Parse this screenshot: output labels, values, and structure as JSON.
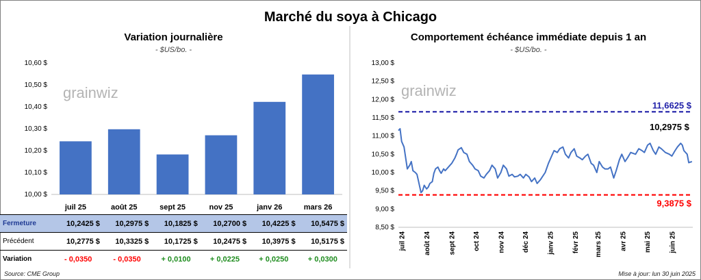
{
  "page": {
    "title": "Marché du soya à Chicago",
    "source": "Source: CME Group",
    "updated": "Mise à jour: lun 30 juin 2025",
    "watermark": "grainwiz",
    "colors": {
      "bar": "#4472c4",
      "line": "#4472c4",
      "high_line": "#1f1fa8",
      "low_line": "#ff0000",
      "negative": "#ff0000",
      "positive": "#1e8c1e",
      "table_highlight": "#b4c6e7"
    }
  },
  "chart_data": [
    {
      "type": "bar",
      "title": "Variation journalière",
      "subtitle": "- $US/bo. -",
      "categories": [
        "juil 25",
        "août 25",
        "sept 25",
        "nov 25",
        "janv 26",
        "mars 26"
      ],
      "values": [
        10.2425,
        10.2975,
        10.1825,
        10.27,
        10.4225,
        10.5475
      ],
      "ylim": [
        10.0,
        10.6
      ],
      "yticks": [
        "10,00 $",
        "10,10 $",
        "10,20 $",
        "10,30 $",
        "10,40 $",
        "10,50 $",
        "10,60 $"
      ],
      "grid": false
    },
    {
      "type": "line",
      "title": "Comportement échéance immédiate depuis 1 an",
      "subtitle": "- $US/bo. -",
      "ylim": [
        8.5,
        13.0
      ],
      "yticks": [
        "8,50 $",
        "9,00 $",
        "9,50 $",
        "10,00 $",
        "10,50 $",
        "11,00 $",
        "11,50 $",
        "12,00 $",
        "12,50 $",
        "13,00 $"
      ],
      "xticks": [
        "juil 24",
        "août 24",
        "sept 24",
        "oct 24",
        "nov 24",
        "déc 24",
        "janv 25",
        "févr 25",
        "mars 25",
        "avr 25",
        "mai 25",
        "juin 25"
      ],
      "x": [
        "2024-07-01",
        "2024-07-03",
        "2024-07-05",
        "2024-07-08",
        "2024-07-10",
        "2024-07-12",
        "2024-07-15",
        "2024-07-17",
        "2024-07-19",
        "2024-07-22",
        "2024-07-24",
        "2024-07-26",
        "2024-07-29",
        "2024-07-31",
        "2024-08-02",
        "2024-08-05",
        "2024-08-07",
        "2024-08-09",
        "2024-08-12",
        "2024-08-14",
        "2024-08-16",
        "2024-08-19",
        "2024-08-21",
        "2024-08-23",
        "2024-08-26",
        "2024-08-28",
        "2024-08-30",
        "2024-09-03",
        "2024-09-05",
        "2024-09-09",
        "2024-09-11",
        "2024-09-13",
        "2024-09-17",
        "2024-09-20",
        "2024-09-24",
        "2024-09-27",
        "2024-10-01",
        "2024-10-04",
        "2024-10-08",
        "2024-10-11",
        "2024-10-15",
        "2024-10-18",
        "2024-10-22",
        "2024-10-25",
        "2024-10-29",
        "2024-11-01",
        "2024-11-05",
        "2024-11-08",
        "2024-11-12",
        "2024-11-15",
        "2024-11-19",
        "2024-11-22",
        "2024-11-26",
        "2024-11-29",
        "2024-12-03",
        "2024-12-06",
        "2024-12-10",
        "2024-12-13",
        "2024-12-17",
        "2024-12-20",
        "2024-12-24",
        "2024-12-30",
        "2025-01-03",
        "2025-01-07",
        "2025-01-10",
        "2025-01-14",
        "2025-01-17",
        "2025-01-21",
        "2025-01-24",
        "2025-01-28",
        "2025-01-31",
        "2025-02-04",
        "2025-02-07",
        "2025-02-11",
        "2025-02-14",
        "2025-02-18",
        "2025-02-21",
        "2025-02-25",
        "2025-02-28",
        "2025-03-04",
        "2025-03-07",
        "2025-03-11",
        "2025-03-14",
        "2025-03-18",
        "2025-03-21",
        "2025-03-25",
        "2025-03-28",
        "2025-04-01",
        "2025-04-04",
        "2025-04-08",
        "2025-04-11",
        "2025-04-15",
        "2025-04-21",
        "2025-04-25",
        "2025-04-29",
        "2025-05-02",
        "2025-05-06",
        "2025-05-09",
        "2025-05-13",
        "2025-05-16",
        "2025-05-20",
        "2025-05-23",
        "2025-05-28",
        "2025-06-02",
        "2025-06-05",
        "2025-06-09",
        "2025-06-12",
        "2025-06-16",
        "2025-06-18",
        "2025-06-20",
        "2025-06-24",
        "2025-06-26",
        "2025-06-30"
      ],
      "y": [
        11.15,
        11.2,
        10.85,
        10.7,
        10.4,
        10.1,
        10.2,
        10.3,
        10.05,
        10.0,
        9.95,
        9.75,
        9.45,
        9.5,
        9.65,
        9.55,
        9.6,
        9.7,
        9.75,
        9.98,
        10.1,
        10.15,
        10.05,
        9.98,
        10.1,
        10.05,
        10.1,
        10.2,
        10.25,
        10.4,
        10.5,
        10.62,
        10.68,
        10.55,
        10.5,
        10.3,
        10.2,
        10.1,
        10.05,
        9.9,
        9.85,
        9.95,
        10.05,
        10.2,
        10.1,
        9.85,
        10.0,
        10.2,
        10.1,
        9.9,
        9.95,
        9.88,
        9.9,
        9.95,
        9.85,
        9.95,
        9.88,
        9.75,
        9.85,
        9.7,
        9.8,
        10.0,
        10.25,
        10.45,
        10.6,
        10.55,
        10.65,
        10.7,
        10.5,
        10.4,
        10.55,
        10.65,
        10.45,
        10.4,
        10.35,
        10.45,
        10.5,
        10.25,
        10.2,
        10.0,
        10.3,
        10.15,
        10.1,
        10.1,
        10.15,
        9.85,
        10.05,
        10.35,
        10.5,
        10.3,
        10.4,
        10.55,
        10.5,
        10.65,
        10.6,
        10.55,
        10.75,
        10.8,
        10.6,
        10.5,
        10.7,
        10.65,
        10.55,
        10.5,
        10.45,
        10.6,
        10.7,
        10.8,
        10.75,
        10.6,
        10.5,
        10.27,
        10.3
      ],
      "reference_lines": [
        {
          "name": "max",
          "value": 11.6625,
          "label": "11,6625 $"
        },
        {
          "name": "min",
          "value": 9.3875,
          "label": "9,3875 $"
        }
      ],
      "last_value_label": "10,2975 $",
      "grid": false
    }
  ],
  "table": {
    "rows": [
      {
        "label": "Fermeture",
        "values": [
          "10,2425  $",
          "10,2975  $",
          "10,1825  $",
          "10,2700  $",
          "10,4225  $",
          "10,5475  $"
        ]
      },
      {
        "label": "Précédent",
        "values": [
          "10,2775  $",
          "10,3325  $",
          "10,1725  $",
          "10,2475  $",
          "10,3975  $",
          "10,5175  $"
        ]
      },
      {
        "label": "Variation",
        "values": [
          "- 0,0350",
          "- 0,0350",
          "+ 0,0100",
          "+ 0,0225",
          "+ 0,0250",
          "+ 0,0300"
        ]
      }
    ]
  }
}
